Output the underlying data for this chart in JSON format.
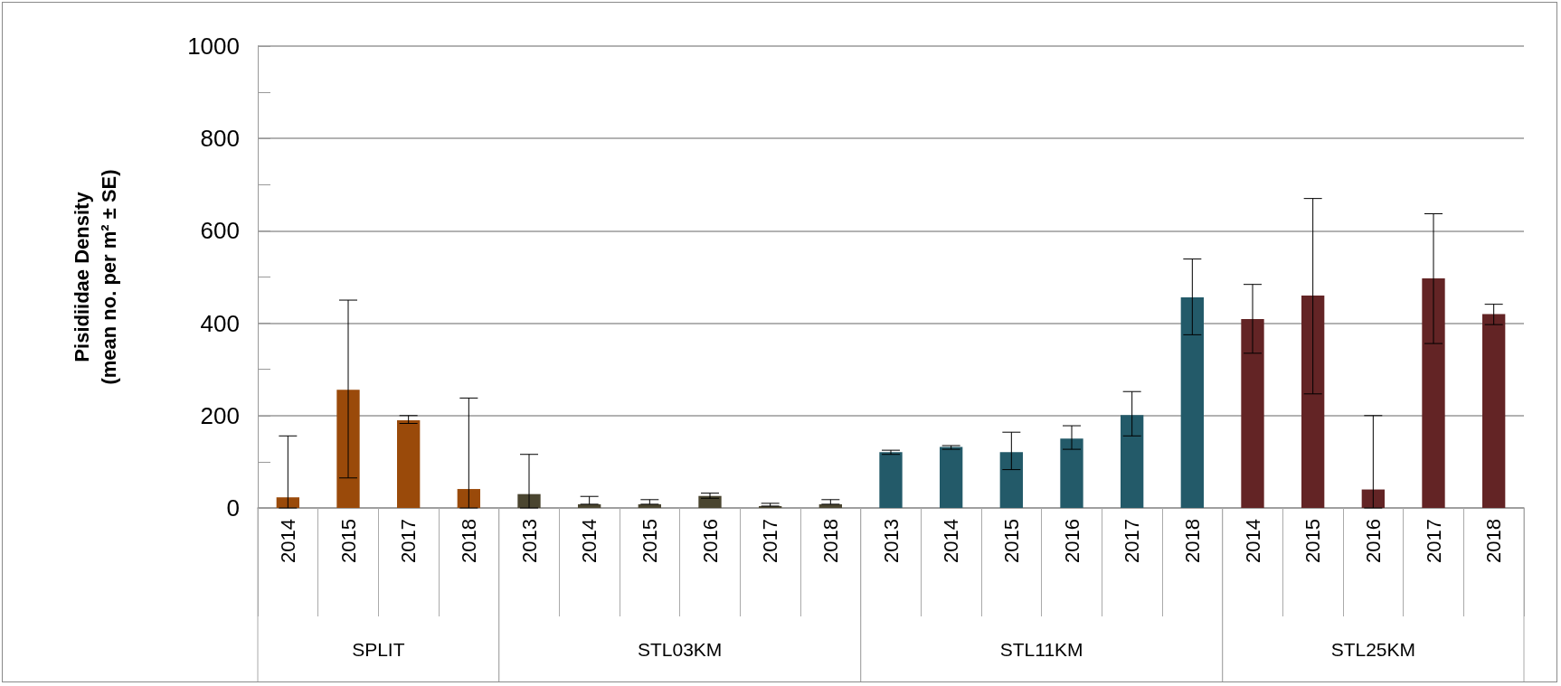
{
  "chart_data": {
    "type": "bar",
    "ylabel": "Pisidiidae Density\n(mean no. per m² ± SE)",
    "categories": [
      "2014",
      "2015",
      "2017",
      "2018",
      "2013",
      "2014",
      "2015",
      "2016",
      "2017",
      "2018",
      "2013",
      "2014",
      "2015",
      "2016",
      "2017",
      "2018",
      "2014",
      "2015",
      "2016",
      "2017",
      "2018"
    ],
    "values": [
      23,
      256,
      190,
      41,
      30,
      8,
      8,
      26,
      4,
      8,
      121,
      132,
      121,
      150,
      201,
      456,
      409,
      460,
      40,
      497,
      420
    ],
    "colors": [
      "#9a4a0a",
      "#9a4a0a",
      "#9a4a0a",
      "#9a4a0a",
      "#4a4530",
      "#4a4530",
      "#4a4530",
      "#4a4530",
      "#4a4530",
      "#4a4530",
      "#235a69",
      "#235a69",
      "#235a69",
      "#235a69",
      "#235a69",
      "#235a69",
      "#632425",
      "#632425",
      "#632425",
      "#632425",
      "#632425"
    ],
    "errors": [
      [
        0,
        156
      ],
      [
        65,
        450
      ],
      [
        183,
        200
      ],
      [
        0,
        238
      ],
      [
        0,
        116
      ],
      [
        8,
        25
      ],
      [
        8,
        18
      ],
      [
        21,
        32
      ],
      [
        4,
        10
      ],
      [
        8,
        18
      ],
      [
        116,
        125
      ],
      [
        127,
        135
      ],
      [
        83,
        164
      ],
      [
        127,
        178
      ],
      [
        156,
        252
      ],
      [
        375,
        539
      ],
      [
        335,
        484
      ],
      [
        247,
        670
      ],
      [
        0,
        200
      ],
      [
        356,
        637
      ],
      [
        397,
        441
      ]
    ],
    "annotations": [
      "SPLIT",
      "STL03KM",
      "STL11KM",
      "STL25KM"
    ],
    "ylim": [
      0,
      1000
    ],
    "yticks": [
      0,
      {
        "value": 100,
        "label": null
      },
      200,
      {
        "value": 300,
        "label": null
      },
      400,
      {
        "value": 500,
        "label": null
      },
      600,
      {
        "value": 700,
        "label": null
      },
      800,
      {
        "value": 900,
        "label": null
      },
      1000
    ],
    "grid": "y"
  }
}
